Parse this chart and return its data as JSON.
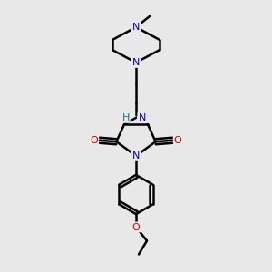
{
  "bg_color": "#e8e8e8",
  "bond_color": "#000000",
  "N_color": "#0000cc",
  "O_color": "#cc0000",
  "NH_color": "#008080",
  "line_width": 1.8,
  "figsize": [
    3.0,
    3.0
  ],
  "dpi": 100,
  "xlim": [
    0.2,
    0.8
  ],
  "ylim": [
    0.0,
    1.0
  ]
}
